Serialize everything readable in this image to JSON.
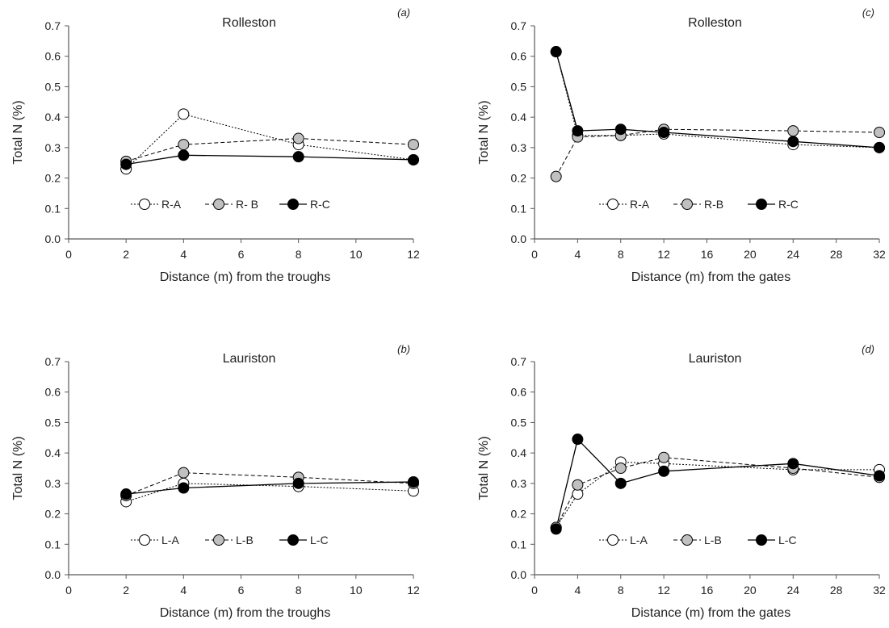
{
  "figure": {
    "panels_order": [
      "a",
      "b",
      "c",
      "d"
    ]
  },
  "chart_data": [
    {
      "panel": "(a)",
      "type": "line",
      "title": "Rolleston",
      "xlabel": "Distance (m) from the troughs",
      "ylabel": "Total N (%)",
      "xlim": [
        0,
        12
      ],
      "ylim": [
        0,
        0.7
      ],
      "xticks": [
        0,
        2,
        4,
        6,
        8,
        10,
        12
      ],
      "yticks": [
        "0.0",
        "0.1",
        "0.2",
        "0.3",
        "0.4",
        "0.5",
        "0.6",
        "0.7"
      ],
      "grid": false,
      "legend_position": "inside-lower-center",
      "x": [
        2,
        4,
        8,
        12
      ],
      "series": [
        {
          "name": "R-A",
          "marker": "open",
          "line": "dotted",
          "values": [
            0.23,
            0.41,
            0.31,
            0.26
          ]
        },
        {
          "name": "R- B",
          "marker": "grey",
          "line": "dashed",
          "values": [
            0.255,
            0.31,
            0.33,
            0.31
          ]
        },
        {
          "name": "R-C",
          "marker": "black",
          "line": "solid",
          "values": [
            0.245,
            0.275,
            0.27,
            0.26
          ]
        }
      ]
    },
    {
      "panel": "(b)",
      "type": "line",
      "title": "Lauriston",
      "xlabel": "Distance (m) from the troughs",
      "ylabel": "Total N (%)",
      "xlim": [
        0,
        12
      ],
      "ylim": [
        0,
        0.7
      ],
      "xticks": [
        0,
        2,
        4,
        6,
        8,
        10,
        12
      ],
      "yticks": [
        "0.0",
        "0.1",
        "0.2",
        "0.3",
        "0.4",
        "0.5",
        "0.6",
        "0.7"
      ],
      "grid": false,
      "legend_position": "inside-lower-center",
      "x": [
        2,
        4,
        8,
        12
      ],
      "series": [
        {
          "name": "L-A",
          "marker": "open",
          "line": "dotted",
          "values": [
            0.24,
            0.3,
            0.29,
            0.275
          ]
        },
        {
          "name": "L-B",
          "marker": "grey",
          "line": "dashed",
          "values": [
            0.26,
            0.335,
            0.32,
            0.3
          ]
        },
        {
          "name": "L-C",
          "marker": "black",
          "line": "solid",
          "values": [
            0.265,
            0.285,
            0.3,
            0.305
          ]
        }
      ]
    },
    {
      "panel": "(c)",
      "type": "line",
      "title": "Rolleston",
      "xlabel": "Distance (m) from the gates",
      "ylabel": "Total N (%)",
      "xlim": [
        0,
        32
      ],
      "ylim": [
        0,
        0.7
      ],
      "xticks": [
        0,
        4,
        8,
        12,
        16,
        20,
        24,
        28,
        32
      ],
      "yticks": [
        "0.0",
        "0.1",
        "0.2",
        "0.3",
        "0.4",
        "0.5",
        "0.6",
        "0.7"
      ],
      "grid": false,
      "legend_position": "inside-lower-center",
      "x": [
        2,
        4,
        8,
        12,
        24,
        32
      ],
      "series": [
        {
          "name": "R-A",
          "marker": "open",
          "line": "dotted",
          "values": [
            0.615,
            0.34,
            0.34,
            0.345,
            0.31,
            0.3
          ]
        },
        {
          "name": "R-B",
          "marker": "grey",
          "line": "dashed",
          "values": [
            0.205,
            0.335,
            0.34,
            0.36,
            0.355,
            0.35
          ]
        },
        {
          "name": "R-C",
          "marker": "black",
          "line": "solid",
          "values": [
            0.615,
            0.355,
            0.36,
            0.35,
            0.32,
            0.3
          ]
        }
      ]
    },
    {
      "panel": "(d)",
      "type": "line",
      "title": "Lauriston",
      "xlabel": "Distance (m) from the gates",
      "ylabel": "Total N (%)",
      "xlim": [
        0,
        32
      ],
      "ylim": [
        0,
        0.7
      ],
      "xticks": [
        0,
        4,
        8,
        12,
        16,
        20,
        24,
        28,
        32
      ],
      "yticks": [
        "0.0",
        "0.1",
        "0.2",
        "0.3",
        "0.4",
        "0.5",
        "0.6",
        "0.7"
      ],
      "grid": false,
      "legend_position": "inside-lower-center",
      "x": [
        2,
        4,
        8,
        12,
        24,
        32
      ],
      "series": [
        {
          "name": "L-A",
          "marker": "open",
          "line": "dotted",
          "values": [
            0.155,
            0.265,
            0.37,
            0.365,
            0.345,
            0.345
          ]
        },
        {
          "name": "L-B",
          "marker": "grey",
          "line": "dashed",
          "values": [
            0.155,
            0.295,
            0.35,
            0.385,
            0.35,
            0.32
          ]
        },
        {
          "name": "L-C",
          "marker": "black",
          "line": "solid",
          "values": [
            0.15,
            0.445,
            0.3,
            0.34,
            0.365,
            0.325
          ]
        }
      ]
    }
  ]
}
